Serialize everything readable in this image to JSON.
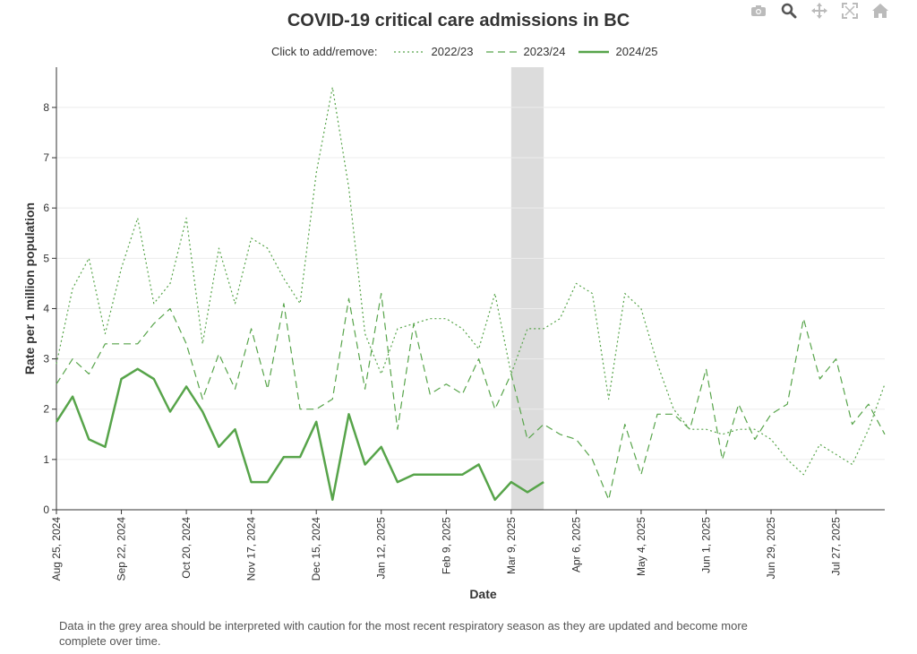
{
  "chart_data": {
    "type": "line",
    "title": "COVID-19 critical care admissions in BC",
    "xlabel": "Date",
    "ylabel": "Rate per 1 million population",
    "ylim": [
      0,
      8.8
    ],
    "yticks": [
      0,
      1,
      2,
      3,
      4,
      5,
      6,
      7,
      8
    ],
    "x_tick_labels": [
      "Aug 25, 2024",
      "Sep 22, 2024",
      "Oct 20, 2024",
      "Nov 17, 2024",
      "Dec 15, 2024",
      "Jan 12, 2025",
      "Feb 9, 2025",
      "Mar 9, 2025",
      "Apr 6, 2025",
      "May 4, 2025",
      "Jun 1, 2025",
      "Jun 29, 2025",
      "Jul 27, 2025"
    ],
    "x_tick_week_index": [
      0,
      4,
      8,
      12,
      16,
      20,
      24,
      28,
      32,
      36,
      40,
      44,
      48
    ],
    "grid": true,
    "shaded_region": {
      "start_week": 28,
      "end_week": 30
    },
    "legend_prompt": "Click to add/remove:",
    "legend_position": "top",
    "series": [
      {
        "name": "2022/23",
        "color": "#57a44a",
        "dash": "2,3",
        "width": 1.2,
        "values": [
          2.9,
          4.4,
          5.0,
          3.5,
          4.8,
          5.8,
          4.1,
          4.5,
          5.8,
          3.3,
          5.2,
          4.1,
          5.4,
          5.2,
          4.6,
          4.1,
          6.7,
          8.4,
          6.4,
          3.5,
          2.7,
          3.6,
          3.7,
          3.8,
          3.8,
          3.6,
          3.2,
          4.3,
          2.7,
          3.6,
          3.6,
          3.8,
          4.5,
          4.3,
          2.2,
          4.3,
          4.0,
          2.9,
          2.0,
          1.6,
          1.6,
          1.5,
          1.6,
          1.6,
          1.4,
          1.0,
          0.7,
          1.3,
          1.1,
          0.9,
          1.6,
          2.5
        ]
      },
      {
        "name": "2023/24",
        "color": "#57a44a",
        "dash": "8,5",
        "width": 1.2,
        "values": [
          2.5,
          3.0,
          2.7,
          3.3,
          3.3,
          3.3,
          3.7,
          4.0,
          3.3,
          2.2,
          3.1,
          2.4,
          3.6,
          2.4,
          4.1,
          2.0,
          2.0,
          2.2,
          4.2,
          2.4,
          4.3,
          1.6,
          3.7,
          2.3,
          2.5,
          2.3,
          3.0,
          2.0,
          2.7,
          1.4,
          1.7,
          1.5,
          1.4,
          1.0,
          0.2,
          1.7,
          0.7,
          1.9,
          1.9,
          1.6,
          2.8,
          1.0,
          2.1,
          1.4,
          1.9,
          2.1,
          3.8,
          2.6,
          3.0,
          1.7,
          2.1,
          1.5
        ]
      },
      {
        "name": "2024/25",
        "color": "#57a44a",
        "dash": "",
        "width": 2.5,
        "values": [
          1.75,
          2.25,
          1.4,
          1.25,
          2.6,
          2.8,
          2.6,
          1.95,
          2.45,
          1.95,
          1.25,
          1.6,
          0.55,
          0.55,
          1.05,
          1.05,
          1.75,
          0.2,
          1.9,
          0.9,
          1.25,
          0.55,
          0.7,
          0.7,
          0.7,
          0.7,
          0.9,
          0.2,
          0.55,
          0.35,
          0.55
        ]
      }
    ]
  },
  "footnote": "Data in the grey area should be interpreted with caution for the most recent respiratory season as they are updated and become more complete over time.",
  "toolbar": {
    "icons": [
      "camera-icon",
      "zoom-icon",
      "pan-icon",
      "autoscale-icon",
      "home-icon"
    ]
  }
}
